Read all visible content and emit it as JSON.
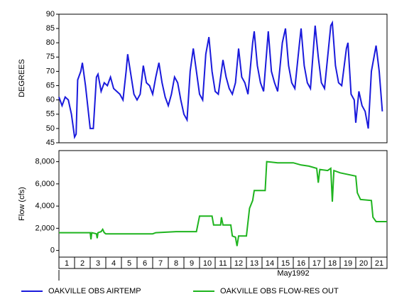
{
  "chart_data": [
    {
      "type": "line",
      "ylabel": "DEGREES",
      "ylim": [
        45,
        90
      ],
      "yticks": [
        45,
        50,
        55,
        60,
        65,
        70,
        75,
        80,
        85,
        90
      ],
      "xlim": [
        1,
        22
      ],
      "series": [
        {
          "name": "OAKVILLE OBS AIRTEMP",
          "color": "#1a1adc",
          "x": [
            1.0,
            1.2,
            1.4,
            1.6,
            1.8,
            2.0,
            2.1,
            2.2,
            2.4,
            2.5,
            2.7,
            2.9,
            3.0,
            3.2,
            3.4,
            3.5,
            3.7,
            3.9,
            4.1,
            4.3,
            4.5,
            4.7,
            4.9,
            5.1,
            5.3,
            5.4,
            5.6,
            5.8,
            6.0,
            6.2,
            6.4,
            6.6,
            6.8,
            7.0,
            7.2,
            7.4,
            7.6,
            7.8,
            8.0,
            8.2,
            8.4,
            8.6,
            8.8,
            9.0,
            9.2,
            9.4,
            9.6,
            9.8,
            10.0,
            10.2,
            10.4,
            10.6,
            10.8,
            11.0,
            11.2,
            11.5,
            11.7,
            11.9,
            12.1,
            12.3,
            12.5,
            12.7,
            12.9,
            13.1,
            13.4,
            13.5,
            13.7,
            13.9,
            14.1,
            14.4,
            14.6,
            14.8,
            15.0,
            15.3,
            15.5,
            15.7,
            15.9,
            16.1,
            16.4,
            16.5,
            16.7,
            16.9,
            17.1,
            17.4,
            17.6,
            17.8,
            18.0,
            18.4,
            18.5,
            18.7,
            18.9,
            19.1,
            19.4,
            19.5,
            19.7,
            19.9,
            20.0,
            20.2,
            20.4,
            20.6,
            20.8,
            21.0,
            21.3,
            21.5,
            21.7
          ],
          "values": [
            61,
            58,
            61,
            60,
            55,
            47,
            48,
            67,
            70,
            73,
            65,
            55,
            50,
            50,
            68,
            69,
            63,
            66,
            65,
            68,
            64,
            63,
            62,
            60,
            70,
            76,
            69,
            62,
            60,
            62,
            72,
            66,
            65,
            62,
            68,
            73,
            66,
            61,
            58,
            62,
            68,
            66,
            60,
            55,
            53,
            70,
            78,
            70,
            62,
            60,
            76,
            82,
            70,
            63,
            62,
            74,
            68,
            64,
            62,
            66,
            78,
            68,
            66,
            62,
            80,
            84,
            72,
            66,
            63,
            84,
            70,
            66,
            63,
            80,
            85,
            72,
            66,
            64,
            80,
            85,
            72,
            66,
            64,
            86,
            75,
            66,
            64,
            86,
            87,
            72,
            66,
            65,
            78,
            80,
            62,
            60,
            52,
            63,
            58,
            56,
            50,
            70,
            79,
            70,
            56
          ]
        }
      ]
    },
    {
      "type": "line",
      "ylabel": "Flow (cfs)",
      "ylim": [
        -600,
        9000
      ],
      "yticks": [
        0,
        {
          "value": 2000,
          "label": "2,000"
        },
        {
          "value": 4000,
          "label": "4,000"
        },
        {
          "value": 6000,
          "label": "6,000"
        },
        {
          "value": 8000,
          "label": "8,000"
        }
      ],
      "xlim": [
        1,
        22
      ],
      "categories": [
        "1",
        "2",
        "3",
        "4",
        "5",
        "6",
        "7",
        "8",
        "9",
        "10",
        "11",
        "12",
        "13",
        "14",
        "15",
        "16",
        "17",
        "18",
        "19",
        "20",
        "21"
      ],
      "xlabel": "May1992",
      "series": [
        {
          "name": "OAKVILLE OBS FLOW-RES OUT",
          "color": "#1fb41f",
          "x": [
            1.0,
            3.0,
            3.05,
            3.1,
            3.4,
            3.45,
            3.5,
            3.7,
            3.8,
            3.9,
            4.0,
            7.0,
            7.2,
            8.5,
            9.8,
            10.0,
            10.8,
            10.9,
            11.35,
            11.4,
            11.5,
            12.0,
            12.1,
            12.3,
            12.4,
            12.5,
            13.0,
            13.2,
            13.4,
            13.5,
            14.2,
            14.3,
            15.0,
            16.0,
            16.5,
            17.0,
            17.5,
            17.6,
            17.7,
            18.2,
            18.4,
            18.5,
            18.6,
            19.0,
            20.0,
            20.1,
            20.3,
            21.0,
            21.1,
            21.3,
            22.0
          ],
          "values": [
            1600,
            1600,
            1000,
            1600,
            1500,
            1100,
            1600,
            1700,
            1900,
            1600,
            1500,
            1500,
            1600,
            1700,
            1700,
            3100,
            3100,
            2300,
            2300,
            3000,
            2300,
            2300,
            1300,
            1200,
            400,
            1300,
            1300,
            3800,
            4500,
            5400,
            5400,
            8000,
            7900,
            7900,
            7700,
            7600,
            7400,
            6100,
            7300,
            7200,
            7400,
            4400,
            7200,
            7000,
            6700,
            5200,
            4600,
            4500,
            3000,
            2600,
            2600
          ]
        }
      ]
    }
  ]
}
